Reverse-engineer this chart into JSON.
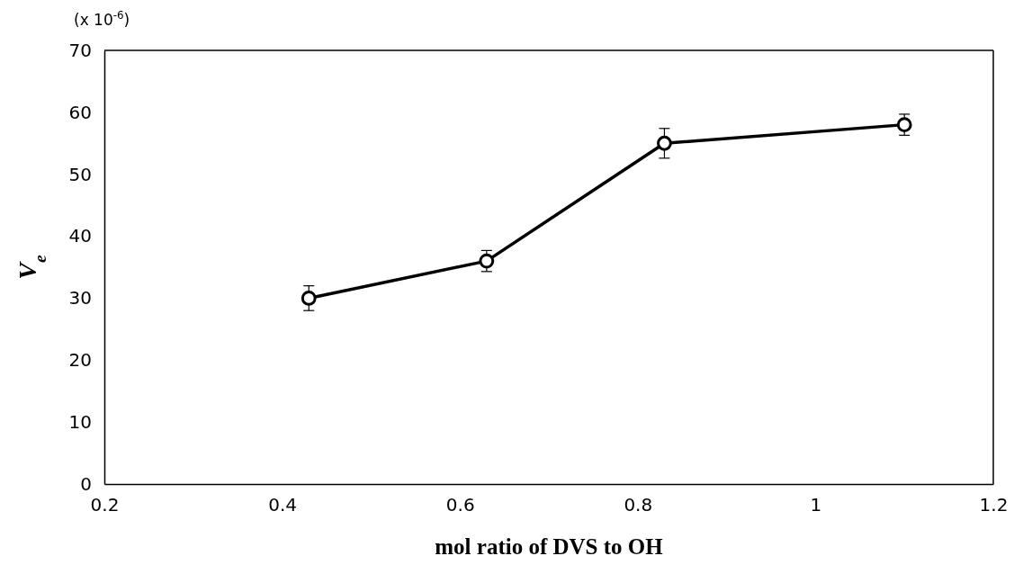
{
  "chart_data": {
    "type": "line",
    "xlabel": "mol ratio of DVS to OH",
    "ylabel": "V$_{e}$",
    "annotations": [
      "(x 10$^{-6}$)"
    ],
    "x": [
      0.43,
      0.63,
      0.83,
      1.1
    ],
    "series": [
      {
        "color": "#000000",
        "values": [
          30,
          36,
          55,
          58
        ],
        "errors": [
          2,
          1.7,
          2.4,
          1.7
        ]
      }
    ],
    "xlim": [
      0.2,
      1.2
    ],
    "xticks": [
      0.2,
      0.4,
      0.6,
      0.8,
      1,
      1.2
    ],
    "ylim": [
      0,
      70
    ],
    "yticks": [
      0,
      10,
      20,
      30,
      40,
      50,
      60,
      70
    ],
    "grid": false,
    "marker": "circle",
    "line_style": "solid"
  }
}
